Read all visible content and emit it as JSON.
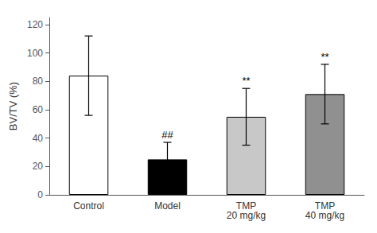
{
  "chart_data": {
    "type": "bar",
    "categories": [
      "Control",
      "Model",
      "TMP\n20 mg/kg",
      "TMP\n40 mg/kg"
    ],
    "values": [
      84,
      25,
      55,
      71
    ],
    "errors": [
      28,
      12,
      20,
      21
    ],
    "colors": [
      "#ffffff",
      "#000000",
      "#c8c8c8",
      "#909090"
    ],
    "annotations": [
      null,
      "##",
      "**",
      "**"
    ],
    "ylabel": "BV/TV (%)",
    "ylim": [
      0,
      125
    ],
    "yticks": [
      0,
      20,
      40,
      60,
      80,
      100,
      120
    ],
    "grid": false
  }
}
